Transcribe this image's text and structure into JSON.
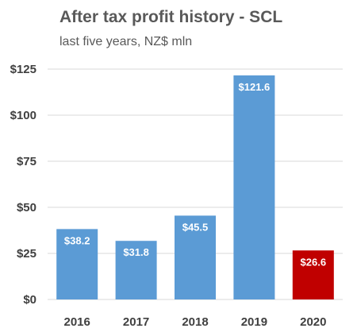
{
  "chart_data": {
    "type": "bar",
    "title": "After tax profit history - SCL",
    "subtitle": "last five years, NZ$ mln",
    "xlabel": "",
    "ylabel": "",
    "categories": [
      "2016",
      "2017",
      "2018",
      "2019",
      "2020"
    ],
    "values": [
      38.2,
      31.8,
      45.5,
      121.6,
      26.6
    ],
    "data_labels": [
      "$38.2",
      "$31.8",
      "$45.5",
      "$121.6",
      "$26.6"
    ],
    "bar_colors": [
      "#5B9BD5",
      "#5B9BD5",
      "#5B9BD5",
      "#5B9BD5",
      "#C00000"
    ],
    "ylim": [
      0,
      125
    ],
    "yticks": [
      0,
      25,
      50,
      75,
      100,
      125
    ],
    "ytick_labels": [
      "$0",
      "$25",
      "$50",
      "$75",
      "$100",
      "$125"
    ],
    "grid": true,
    "legend": "none"
  }
}
